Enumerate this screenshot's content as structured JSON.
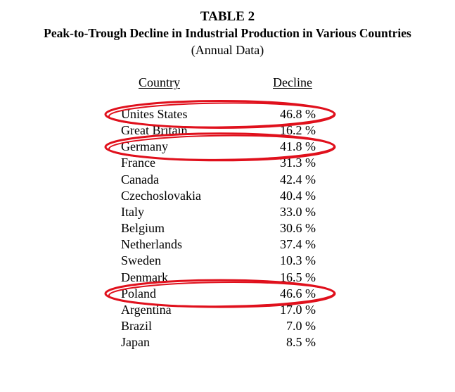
{
  "header": {
    "table_number": "TABLE 2",
    "title": "Peak-to-Trough Decline in Industrial Production in Various Countries",
    "subtitle": "(Annual Data)"
  },
  "columns": {
    "country": "Country",
    "decline": "Decline"
  },
  "rows": [
    {
      "country": "Unites States",
      "decline": "46.8 %",
      "circled": true
    },
    {
      "country": "Great Britain",
      "decline": "16.2 %",
      "circled": false
    },
    {
      "country": "Germany",
      "decline": "41.8 %",
      "circled": true
    },
    {
      "country": "France",
      "decline": "31.3 %",
      "circled": false
    },
    {
      "country": "Canada",
      "decline": "42.4 %",
      "circled": false
    },
    {
      "country": "Czechoslovakia",
      "decline": "40.4 %",
      "circled": false
    },
    {
      "country": "Italy",
      "decline": "33.0 %",
      "circled": false
    },
    {
      "country": "Belgium",
      "decline": "30.6 %",
      "circled": false
    },
    {
      "country": "Netherlands",
      "decline": "37.4 %",
      "circled": false
    },
    {
      "country": "Sweden",
      "decline": "10.3 %",
      "circled": false
    },
    {
      "country": "Denmark",
      "decline": "16.5 %",
      "circled": false
    },
    {
      "country": "Poland",
      "decline": "46.6 %",
      "circled": true
    },
    {
      "country": "Argentina",
      "decline": "17.0 %",
      "circled": false
    },
    {
      "country": "Brazil",
      "decline": "7.0 %",
      "circled": false
    },
    {
      "country": "Japan",
      "decline": "8.5 %",
      "circled": false
    }
  ],
  "annotation_color": "#e0101c"
}
